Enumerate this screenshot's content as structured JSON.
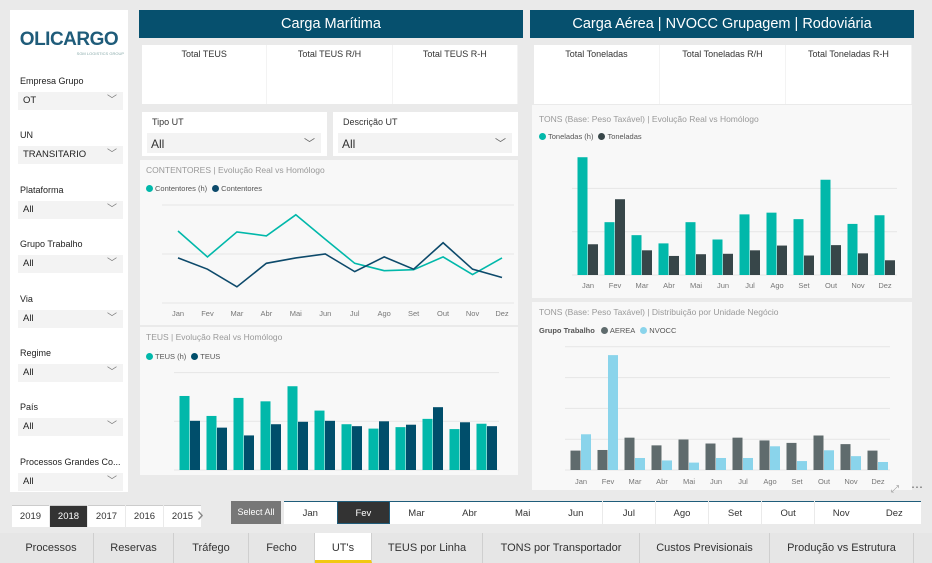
{
  "logo": {
    "text": "OLICARGO",
    "subtitle": "SGM LOGISTICS GROUP"
  },
  "filters": [
    {
      "label": "Empresa Grupo",
      "value": "OT"
    },
    {
      "label": "UN",
      "value": "TRANSITARIO"
    },
    {
      "label": "Plataforma",
      "value": "All"
    },
    {
      "label": "Grupo Trabalho",
      "value": "All"
    },
    {
      "label": "Via",
      "value": "All"
    },
    {
      "label": "Regime",
      "value": "All"
    },
    {
      "label": "País",
      "value": "All"
    },
    {
      "label": "Processos Grandes Co...",
      "value": "All"
    }
  ],
  "maritime": {
    "title": "Carga Marítima",
    "kpis": [
      "Total TEUS",
      "Total TEUS R/H",
      "Total TEUS R-H"
    ],
    "slicers": [
      {
        "label": "Tipo UT",
        "value": "All"
      },
      {
        "label": "Descrição UT",
        "value": "All"
      }
    ]
  },
  "air": {
    "title": "Carga Aérea | NVOCC Grupagem | Rodoviária",
    "kpis": [
      "Total Toneladas",
      "Total Toneladas R/H",
      "Total Toneladas R-H"
    ]
  },
  "chart_data": [
    {
      "type": "line",
      "title": "CONTENTORES | Evolução Real vs Homólogo",
      "grid": true,
      "legend": "top-left",
      "categories": [
        "Jan",
        "Fev",
        "Mar",
        "Abr",
        "Mai",
        "Jun",
        "Jul",
        "Ago",
        "Set",
        "Out",
        "Nov",
        "Dez"
      ],
      "series": [
        {
          "name": "Contentores (h)",
          "color": "#01B8AA",
          "values": [
            1.47,
            0.94,
            1.45,
            1.37,
            1.8,
            1.3,
            0.81,
            0.66,
            0.68,
            0.94,
            0.58,
            0.92
          ]
        },
        {
          "name": "Contentores",
          "color": "#0D4A6B",
          "values": [
            0.92,
            0.69,
            0.33,
            0.81,
            0.92,
            1.0,
            0.64,
            0.94,
            0.69,
            1.23,
            0.69,
            0.52
          ]
        }
      ]
    },
    {
      "type": "bar",
      "title": "TEUS | Evolução Real vs Homólogo",
      "grid": true,
      "legend": "top-left",
      "categories": [
        "Jan",
        "Fev",
        "Mar",
        "Abr",
        "Mai",
        "Jun",
        "Jul",
        "Ago",
        "Set",
        "Out",
        "Nov",
        "Dez"
      ],
      "series": [
        {
          "name": "TEUS (h)",
          "color": "#01B8AA",
          "values": [
            1.52,
            1.11,
            1.48,
            1.41,
            1.72,
            1.22,
            0.94,
            0.85,
            0.88,
            1.05,
            0.84,
            0.95
          ]
        },
        {
          "name": "TEUS",
          "color": "#004E6B",
          "values": [
            1.01,
            0.87,
            0.71,
            0.94,
            0.99,
            1.01,
            0.9,
            1.0,
            0.93,
            1.29,
            0.98,
            0.9
          ]
        }
      ]
    },
    {
      "type": "bar",
      "title": "TONS (Base: Peso Taxável) | Evolução Real vs Homólogo",
      "grid": true,
      "legend": "top-left",
      "categories": [
        "Jan",
        "Fev",
        "Mar",
        "Abr",
        "Mai",
        "Jun",
        "Jul",
        "Ago",
        "Set",
        "Out",
        "Nov",
        "Dez"
      ],
      "series": [
        {
          "name": "Toneladas (h)",
          "color": "#01B8AA",
          "values": [
            2.72,
            1.22,
            0.92,
            0.73,
            1.22,
            0.82,
            1.4,
            1.44,
            1.29,
            2.2,
            1.18,
            1.38
          ]
        },
        {
          "name": "Toneladas",
          "color": "#374649",
          "values": [
            0.71,
            1.75,
            0.57,
            0.44,
            0.48,
            0.49,
            0.57,
            0.68,
            0.45,
            0.69,
            0.5,
            0.34
          ]
        }
      ]
    },
    {
      "type": "bar",
      "title": "TONS (Base: Peso Taxável) | Distribuição por Unidade Negócio",
      "legend_title": "Grupo Trabalho",
      "grid": true,
      "legend": "top-left",
      "categories": [
        "Jan",
        "Fev",
        "Mar",
        "Abr",
        "Mai",
        "Jun",
        "Jul",
        "Ago",
        "Set",
        "Out",
        "Nov",
        "Dez"
      ],
      "series": [
        {
          "name": "AEREA",
          "color": "#5F6B6D",
          "values": [
            0.63,
            0.65,
            1.05,
            0.8,
            0.99,
            0.86,
            1.05,
            0.96,
            0.88,
            1.12,
            0.84,
            0.63
          ]
        },
        {
          "name": "NVOCC",
          "color": "#8AD4EB",
          "values": [
            1.16,
            3.73,
            0.39,
            0.31,
            0.24,
            0.39,
            0.39,
            0.77,
            0.29,
            0.64,
            0.45,
            0.26
          ]
        }
      ]
    }
  ],
  "years": {
    "items": [
      "2019",
      "2018",
      "2017",
      "2016",
      "2015"
    ],
    "selected": "2018"
  },
  "months": {
    "select_all": "Select All",
    "items": [
      "Jan",
      "Fev",
      "Mar",
      "Abr",
      "Mai",
      "Jun",
      "Jul",
      "Ago",
      "Set",
      "Out",
      "Nov",
      "Dez"
    ],
    "selected": "Fev"
  },
  "tabs": {
    "items": [
      "Processos",
      "Reservas",
      "Tráfego",
      "Fecho",
      "UT's",
      "TEUS por Linha",
      "TONS por Transportador",
      "Custos Previsionais",
      "Produção vs Estrutura"
    ],
    "active": "UT's"
  },
  "icons": {
    "dropdown": "chevron-down-icon",
    "next": "chevron-right-icon",
    "focus": "focus-mode-icon",
    "more": "more-options-icon"
  }
}
